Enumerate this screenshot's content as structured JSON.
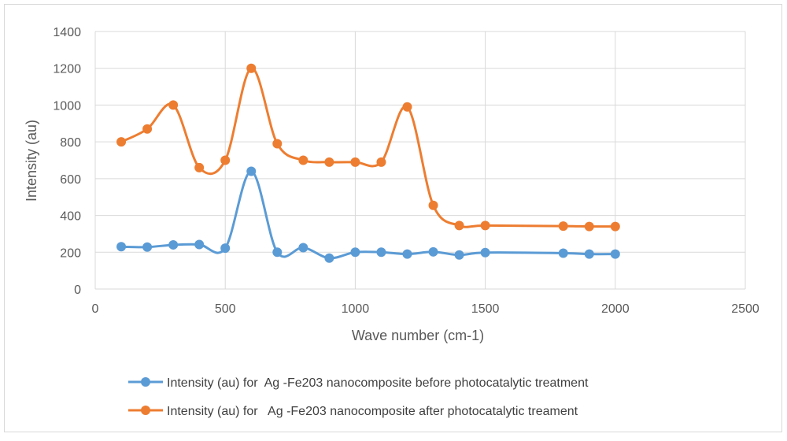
{
  "chart_data": {
    "type": "scatter",
    "title": "",
    "xlabel": "Wave number (cm-1)",
    "ylabel": "Intensity (au)",
    "xlim": [
      0,
      2500
    ],
    "ylim": [
      0,
      1400
    ],
    "xticks": [
      0,
      500,
      1000,
      1500,
      2000,
      2500
    ],
    "yticks": [
      0,
      200,
      400,
      600,
      800,
      1000,
      1200,
      1400
    ],
    "grid": true,
    "legend_position": "bottom",
    "series": [
      {
        "name": "Intensity (au) for  Ag -Fe203 nanocomposite before photocatalytic treatment",
        "color": "#5b9bd5",
        "x": [
          100,
          200,
          300,
          400,
          500,
          600,
          700,
          800,
          900,
          1000,
          1100,
          1200,
          1300,
          1400,
          1500,
          1800,
          1900,
          2000
        ],
        "y": [
          230,
          228,
          240,
          242,
          222,
          640,
          200,
          225,
          168,
          200,
          200,
          190,
          202,
          185,
          198,
          195,
          190,
          190
        ]
      },
      {
        "name": "Intensity (au) for   Ag -Fe203 nanocomposite after photocatalytic treament",
        "color": "#ed7d31",
        "x": [
          100,
          200,
          300,
          400,
          500,
          600,
          700,
          800,
          900,
          1000,
          1100,
          1200,
          1300,
          1400,
          1500,
          1800,
          1900,
          2000
        ],
        "y": [
          800,
          870,
          1000,
          660,
          700,
          1200,
          790,
          700,
          690,
          690,
          690,
          990,
          455,
          345,
          345,
          342,
          340,
          340
        ]
      }
    ]
  }
}
